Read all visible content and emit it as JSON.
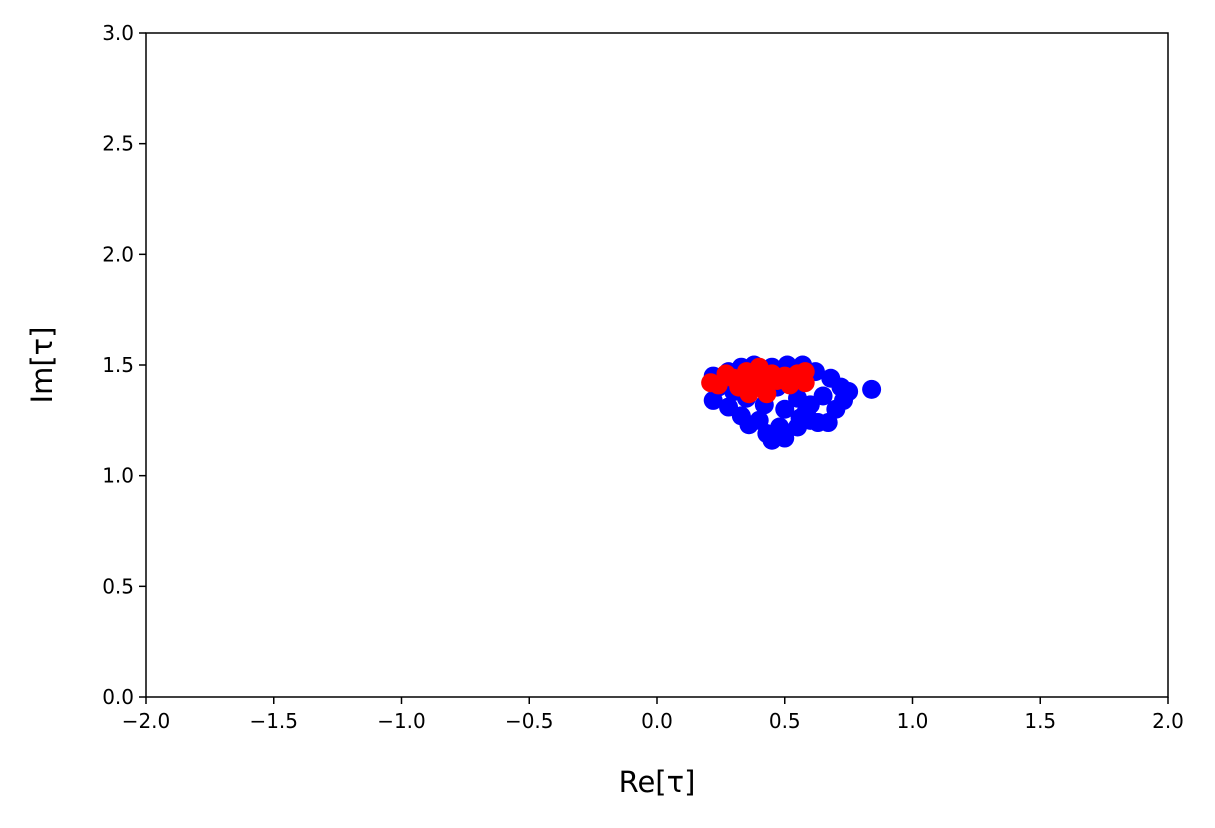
{
  "chart_data": {
    "type": "scatter",
    "xlabel": "Re[τ]",
    "ylabel": "Im[τ]",
    "xlim": [
      -2,
      2
    ],
    "xticks": [
      {
        "value": -2,
        "label": "−2.0"
      },
      {
        "value": -1.5,
        "label": "−1.5"
      },
      {
        "value": -1,
        "label": "−1.0"
      },
      {
        "value": -0.5,
        "label": "−0.5"
      },
      {
        "value": 0,
        "label": "0.0"
      },
      0.5,
      {
        "value": 1,
        "label": "1.0"
      },
      1.5,
      {
        "value": 2,
        "label": "2.0"
      }
    ],
    "ylim": [
      0,
      3
    ],
    "yticks": [
      {
        "value": 0,
        "label": "0.0"
      },
      0.5,
      {
        "value": 1,
        "label": "1.0"
      },
      1.5,
      {
        "value": 2,
        "label": "2.0"
      },
      2.5,
      {
        "value": 3,
        "label": "3.0"
      }
    ],
    "series": [
      {
        "color": "#0000ff",
        "x": [
          0.22,
          0.24,
          0.22,
          0.28,
          0.33,
          0.36,
          0.4,
          0.43,
          0.45,
          0.5,
          0.48,
          0.55,
          0.6,
          0.63,
          0.67,
          0.7,
          0.73,
          0.75,
          0.72,
          0.84,
          0.68,
          0.62,
          0.57,
          0.51,
          0.45,
          0.38,
          0.33,
          0.28,
          0.35,
          0.42,
          0.5,
          0.55,
          0.6,
          0.65,
          0.47,
          0.52,
          0.58,
          0.4,
          0.3,
          0.56
        ],
        "values": [
          1.34,
          1.4,
          1.45,
          1.31,
          1.27,
          1.23,
          1.25,
          1.19,
          1.16,
          1.17,
          1.22,
          1.22,
          1.25,
          1.24,
          1.24,
          1.3,
          1.34,
          1.38,
          1.4,
          1.39,
          1.44,
          1.47,
          1.5,
          1.5,
          1.49,
          1.5,
          1.49,
          1.47,
          1.35,
          1.32,
          1.3,
          1.35,
          1.32,
          1.36,
          1.4,
          1.43,
          1.28,
          1.4,
          1.38,
          1.26
        ]
      },
      {
        "color": "#ff0000",
        "x": [
          0.21,
          0.24,
          0.27,
          0.3,
          0.32,
          0.35,
          0.36,
          0.38,
          0.4,
          0.42,
          0.43,
          0.45,
          0.47,
          0.5,
          0.52,
          0.55,
          0.58,
          0.58,
          0.34,
          0.41
        ],
        "values": [
          1.42,
          1.41,
          1.46,
          1.44,
          1.4,
          1.47,
          1.37,
          1.43,
          1.49,
          1.41,
          1.37,
          1.46,
          1.43,
          1.45,
          1.41,
          1.46,
          1.47,
          1.42,
          1.42,
          1.45
        ]
      }
    ]
  }
}
